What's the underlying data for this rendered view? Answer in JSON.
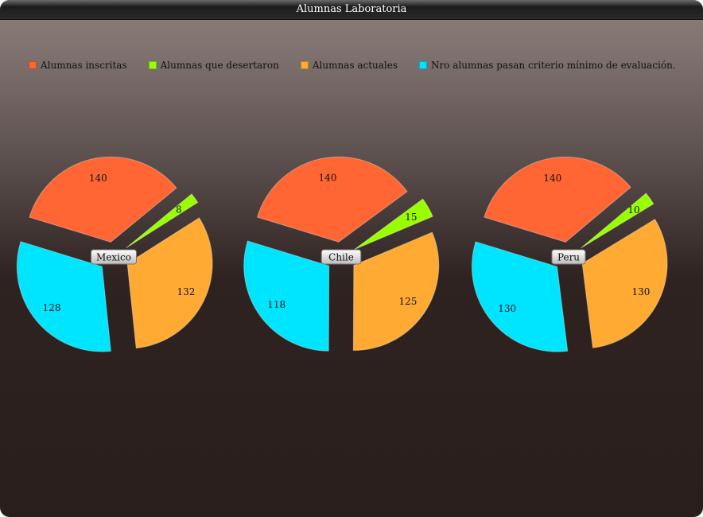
{
  "window": {
    "title": "Alumnas Laboratoria"
  },
  "chart_data": {
    "type": "pie",
    "title": "Alumnas Laboratoria",
    "legend": {
      "position": "top-left",
      "items": [
        {
          "label": "Alumnas inscritas",
          "color": "#ff6633"
        },
        {
          "label": "Alumnas que desertaron",
          "color": "#99ff00"
        },
        {
          "label": "Alumnas actuales",
          "color": "#ffaa33"
        },
        {
          "label": "Nro alumnas pasan criterio mínimo de evaluación.",
          "color": "#00e5ff"
        }
      ]
    },
    "pies": [
      {
        "name": "Mexico",
        "values": [
          140,
          8,
          132,
          128
        ]
      },
      {
        "name": "Chile",
        "values": [
          140,
          15,
          125,
          118
        ]
      },
      {
        "name": "Peru",
        "values": [
          140,
          10,
          130,
          130
        ]
      }
    ]
  }
}
